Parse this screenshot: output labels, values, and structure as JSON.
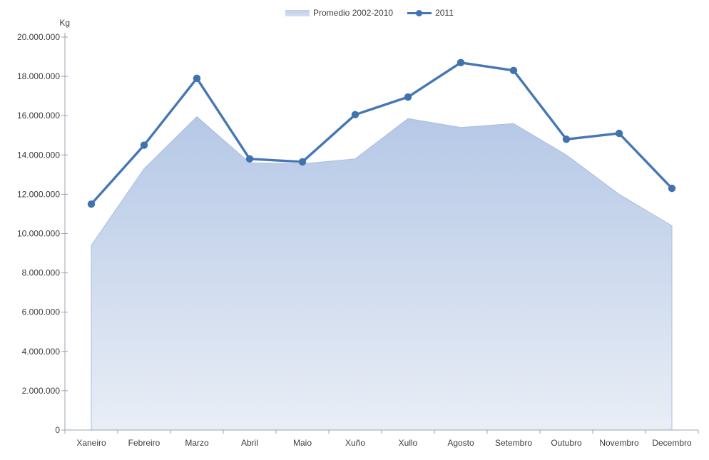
{
  "chart_data": {
    "type": "area+line",
    "unit_label": "Kg",
    "categories": [
      "Xaneiro",
      "Febreiro",
      "Marzo",
      "Abril",
      "Maio",
      "Xuño",
      "Xullo",
      "Agosto",
      "Setembro",
      "Outubro",
      "Novembro",
      "Decembro"
    ],
    "series": [
      {
        "name": "Promedio 2002-2010",
        "type": "area",
        "values": [
          9400000,
          13300000,
          15950000,
          13600000,
          13550000,
          13800000,
          15850000,
          15400000,
          15600000,
          14000000,
          12000000,
          10400000
        ]
      },
      {
        "name": "2011",
        "type": "line",
        "values": [
          11500000,
          14500000,
          17900000,
          13800000,
          13650000,
          16050000,
          16950000,
          18700000,
          18300000,
          14800000,
          15100000,
          12300000
        ]
      }
    ],
    "ylim": [
      0,
      20000000
    ],
    "ytick_step": 2000000,
    "ytick_labels": [
      "0",
      "2.000.000",
      "4.000.000",
      "6.000.000",
      "8.000.000",
      "10.000.000",
      "12.000.000",
      "14.000.000",
      "16.000.000",
      "18.000.000",
      "20.000.000"
    ],
    "legend_position": "top",
    "grid": false
  },
  "legend": {
    "items": [
      {
        "label": "Promedio 2002-2010",
        "swatch": "area"
      },
      {
        "label": "2011",
        "swatch": "line-marker"
      }
    ]
  },
  "colors": {
    "line": "#4677b4",
    "marker": "#4072ae",
    "area_top": "#b5c8e6",
    "area_bottom": "#e9eef6",
    "area_edge": "#a9bedf",
    "legend_swatch": "#c7d5ed",
    "axis": "#9ba3ad",
    "text": "#3d3d3d"
  }
}
